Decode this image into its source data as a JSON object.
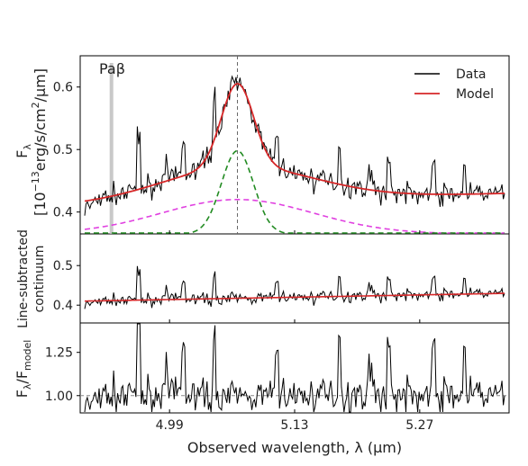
{
  "chart_data": [
    {
      "panel": "top",
      "type": "line",
      "ylabel_line1": "F",
      "ylabel_sub": "λ",
      "ylabel_line2_pre": "[10",
      "ylabel_line2_exp1": "−13",
      "ylabel_line2_mid": "erg/s/cm",
      "ylabel_line2_exp2": "2",
      "ylabel_line2_post": "/μm]",
      "yticks": [
        "0.4",
        "0.5",
        "0.6"
      ],
      "ytick_values": [
        0.4,
        0.5,
        0.6
      ],
      "ylim": [
        0.365,
        0.65
      ],
      "xlim": [
        4.89,
        5.37
      ],
      "annotation": "Paβ",
      "line_center": 5.066,
      "paβ_marker": 4.925,
      "legend": {
        "position": "top-right",
        "entries": [
          {
            "label": "Data",
            "color": "#000000"
          },
          {
            "label": "Model",
            "color": "#d62728"
          }
        ]
      },
      "series": [
        {
          "name": "Data",
          "style": "data-noise",
          "color": "#000000"
        },
        {
          "name": "Model",
          "color": "#d62728",
          "model": {
            "continuum": [
              0.41,
              0.43
            ],
            "narrow_amp": 0.133,
            "narrow_sigma": 0.018,
            "broad_amp": 0.055,
            "broad_sigma": 0.085,
            "center": 5.066
          }
        },
        {
          "component": "narrow",
          "color": "#228b22",
          "dash": true,
          "peak": 0.498,
          "baseline": 0.365
        },
        {
          "component": "broad",
          "color": "#e040e0",
          "dash": true,
          "peak": 0.42,
          "baseline": 0.365
        }
      ]
    },
    {
      "panel": "middle",
      "type": "line",
      "ylabel_line1": "Line-subtracted",
      "ylabel_line2": "continuum",
      "yticks": [
        "0.4",
        "0.5"
      ],
      "ytick_values": [
        0.4,
        0.5
      ],
      "ylim": [
        0.355,
        0.58
      ],
      "continuum_line": {
        "color": "#d62728",
        "values": [
          0.41,
          0.43
        ]
      }
    },
    {
      "panel": "bottom",
      "type": "line",
      "ylabel_main": "F",
      "ylabel_sub1": "λ",
      "ylabel_slash": "/F",
      "ylabel_sub2": "model",
      "yticks": [
        "1.00",
        "1.25"
      ],
      "ytick_values": [
        1.0,
        1.25
      ],
      "ylim": [
        0.9,
        1.42
      ],
      "reference_line": 1.0
    }
  ],
  "xaxis": {
    "ticks": [
      "4.99",
      "5.13",
      "5.27"
    ],
    "tick_values": [
      4.99,
      5.13,
      5.27
    ],
    "label": "Observed wavelength, λ (μm)"
  }
}
